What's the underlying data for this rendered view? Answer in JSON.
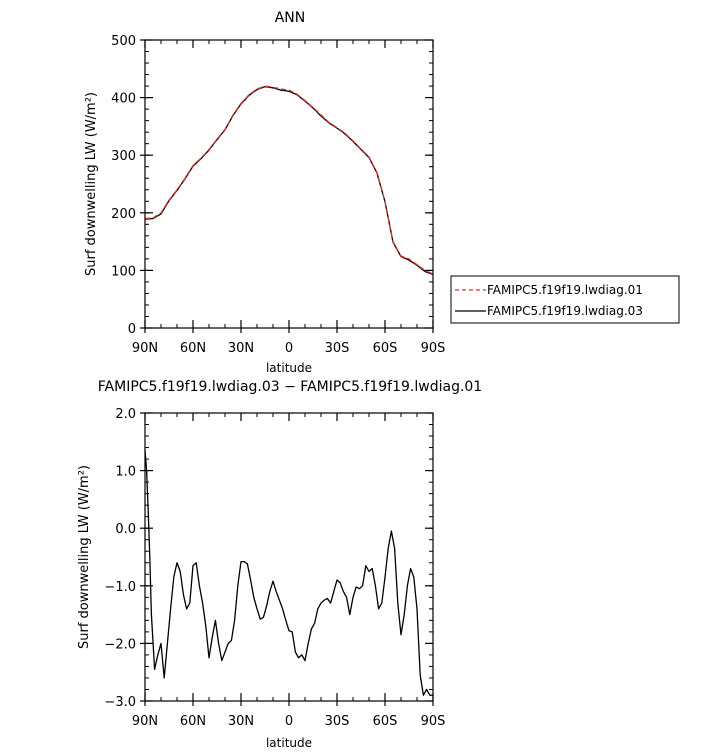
{
  "chart_data": [
    {
      "type": "line",
      "title": "ANN",
      "xlabel": "latitude",
      "ylabel": "Surf downwelling LW (W/m²)",
      "xlim": [
        90,
        -90
      ],
      "ylim": [
        0,
        500
      ],
      "x_ticks": [
        90,
        60,
        30,
        0,
        -30,
        -60,
        -90
      ],
      "x_tick_labels": [
        "90N",
        "60N",
        "30N",
        "0",
        "30S",
        "60S",
        "90S"
      ],
      "y_ticks": [
        0,
        100,
        200,
        300,
        400,
        500
      ],
      "y_tick_labels": [
        "0",
        "100",
        "200",
        "300",
        "400",
        "500"
      ],
      "legend_position": "right",
      "x": [
        90,
        85,
        80,
        75,
        70,
        65,
        60,
        55,
        50,
        45,
        40,
        35,
        30,
        25,
        20,
        15,
        10,
        5,
        0,
        -5,
        -10,
        -15,
        -20,
        -25,
        -30,
        -35,
        -40,
        -45,
        -50,
        -55,
        -60,
        -65,
        -70,
        -75,
        -80,
        -85,
        -90
      ],
      "series": [
        {
          "name": "FAMIPC5.f19f19.lwdiag.01",
          "color": "#e8312f",
          "dash": "dashed",
          "values": [
            190,
            191,
            200,
            222,
            240,
            260,
            282,
            295,
            310,
            328,
            345,
            370,
            390,
            405,
            415,
            420,
            418,
            415,
            413,
            406,
            395,
            383,
            370,
            357,
            348,
            338,
            325,
            311,
            297,
            270,
            220,
            150,
            125,
            120,
            110,
            100,
            94
          ]
        },
        {
          "name": "FAMIPC5.f19f19.lwdiag.03",
          "color": "#000000",
          "dash": "solid",
          "values": [
            189,
            190,
            198,
            221,
            239,
            259,
            281,
            294,
            309,
            327,
            344,
            369,
            389,
            404,
            414,
            419,
            417,
            413,
            411,
            405,
            394,
            382,
            368,
            356,
            347,
            337,
            324,
            310,
            296,
            269,
            219,
            149,
            124,
            118,
            109,
            98,
            93
          ]
        }
      ]
    },
    {
      "type": "line",
      "title": "FAMIPC5.f19f19.lwdiag.03 − FAMIPC5.f19f19.lwdiag.01",
      "xlabel": "latitude",
      "ylabel": "Surf downwelling LW (W/m²)",
      "xlim": [
        90,
        -90
      ],
      "ylim": [
        -3.0,
        2.0
      ],
      "x_ticks": [
        90,
        60,
        30,
        0,
        -30,
        -60,
        -90
      ],
      "x_tick_labels": [
        "90N",
        "60N",
        "30N",
        "0",
        "30S",
        "60S",
        "90S"
      ],
      "y_ticks": [
        -3.0,
        -2.0,
        -1.0,
        0.0,
        1.0,
        2.0
      ],
      "y_tick_labels": [
        "−3.0",
        "−2.0",
        "−1.0",
        "0.0",
        "1.0",
        "2.0"
      ],
      "series": [
        {
          "color": "#000000",
          "dash": "solid",
          "x": [
            90,
            89,
            88,
            87,
            86,
            84,
            82,
            80,
            78,
            76,
            74,
            72,
            70,
            68,
            66,
            64,
            62,
            60,
            58,
            56,
            54,
            52,
            50,
            48,
            46,
            44,
            42,
            40,
            38,
            36,
            34,
            32,
            30,
            28,
            26,
            24,
            22,
            20,
            18,
            16,
            14,
            12,
            10,
            8,
            6,
            4,
            2,
            0,
            -2,
            -4,
            -6,
            -8,
            -10,
            -12,
            -14,
            -16,
            -18,
            -20,
            -22,
            -24,
            -26,
            -28,
            -30,
            -32,
            -34,
            -36,
            -38,
            -40,
            -42,
            -44,
            -46,
            -48,
            -50,
            -52,
            -54,
            -56,
            -58,
            -60,
            -62,
            -64,
            -66,
            -68,
            -70,
            -72,
            -74,
            -76,
            -78,
            -80,
            -82,
            -84,
            -86,
            -88,
            -90
          ],
          "values": [
            1.35,
            1.0,
            0.3,
            -0.5,
            -1.5,
            -2.45,
            -2.2,
            -2.0,
            -2.6,
            -2.0,
            -1.4,
            -0.85,
            -0.6,
            -0.75,
            -1.15,
            -1.4,
            -1.3,
            -0.65,
            -0.6,
            -1.0,
            -1.3,
            -1.7,
            -2.25,
            -1.9,
            -1.6,
            -2.0,
            -2.3,
            -2.15,
            -2.0,
            -1.95,
            -1.6,
            -1.0,
            -0.58,
            -0.58,
            -0.62,
            -0.9,
            -1.2,
            -1.4,
            -1.58,
            -1.55,
            -1.35,
            -1.1,
            -0.92,
            -1.1,
            -1.25,
            -1.4,
            -1.6,
            -1.78,
            -1.8,
            -2.15,
            -2.25,
            -2.2,
            -2.3,
            -2.0,
            -1.75,
            -1.65,
            -1.4,
            -1.3,
            -1.25,
            -1.22,
            -1.3,
            -1.1,
            -0.9,
            -0.95,
            -1.1,
            -1.2,
            -1.5,
            -1.2,
            -1.02,
            -1.05,
            -1.0,
            -0.65,
            -0.75,
            -0.7,
            -1.0,
            -1.4,
            -1.3,
            -0.85,
            -0.35,
            -0.05,
            -0.35,
            -1.3,
            -1.85,
            -1.5,
            -1.0,
            -0.7,
            -0.85,
            -1.4,
            -2.55,
            -2.9,
            -2.8,
            -2.9,
            -2.9
          ]
        }
      ]
    }
  ]
}
